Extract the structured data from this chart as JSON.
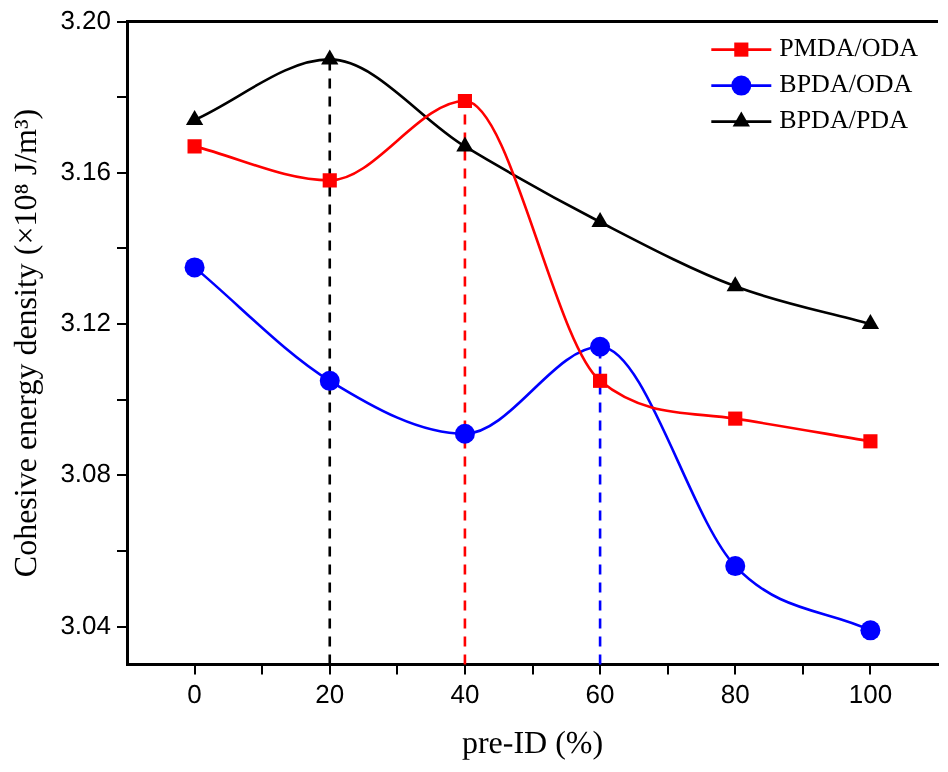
{
  "chart_data": {
    "type": "line",
    "xlabel": "pre-ID (%)",
    "ylabel": "Cohesive energy density (×10⁸ J/m³)",
    "x": [
      0,
      20,
      40,
      60,
      80,
      100
    ],
    "series": [
      {
        "name": "PMDA/ODA",
        "color": "#ff0000",
        "marker": "square",
        "values": [
          3.167,
          3.158,
          3.179,
          3.105,
          3.095,
          3.089
        ]
      },
      {
        "name": "BPDA/ODA",
        "color": "#0000ff",
        "marker": "circle",
        "values": [
          3.135,
          3.105,
          3.091,
          3.114,
          3.056,
          3.039
        ]
      },
      {
        "name": "BPDA/PDA",
        "color": "#000000",
        "marker": "triangle",
        "values": [
          3.174,
          3.19,
          3.167,
          3.147,
          3.13,
          3.12
        ]
      }
    ],
    "xlim": [
      -10,
      110
    ],
    "xticks": [
      0,
      {
        "value": 10,
        "label": null
      },
      20,
      {
        "value": 30,
        "label": null
      },
      40,
      {
        "value": 50,
        "label": null
      },
      60,
      {
        "value": 70,
        "label": null
      },
      80,
      {
        "value": 90,
        "label": null
      },
      100
    ],
    "ylim": [
      3.03,
      3.2
    ],
    "yticks": [
      {
        "value": 3.04,
        "label": "3.04"
      },
      {
        "value": 3.06,
        "label": null
      },
      {
        "value": 3.08,
        "label": "3.08"
      },
      {
        "value": 3.1,
        "label": null
      },
      {
        "value": 3.12,
        "label": "3.12"
      },
      {
        "value": 3.14,
        "label": null
      },
      {
        "value": 3.16,
        "label": "3.16"
      },
      {
        "value": 3.18,
        "label": null
      },
      {
        "value": 3.2,
        "label": "3.20"
      }
    ],
    "ref_lines": [
      {
        "axis": "x",
        "value": 20,
        "color": "#000000",
        "line_style": "dashed"
      },
      {
        "axis": "x",
        "value": 40,
        "color": "#ff0000",
        "line_style": "dashed"
      },
      {
        "axis": "x",
        "value": 60,
        "color": "#0000ff",
        "line_style": "dashed"
      }
    ],
    "grid": false,
    "legend": "top right",
    "line_style": "solid"
  }
}
